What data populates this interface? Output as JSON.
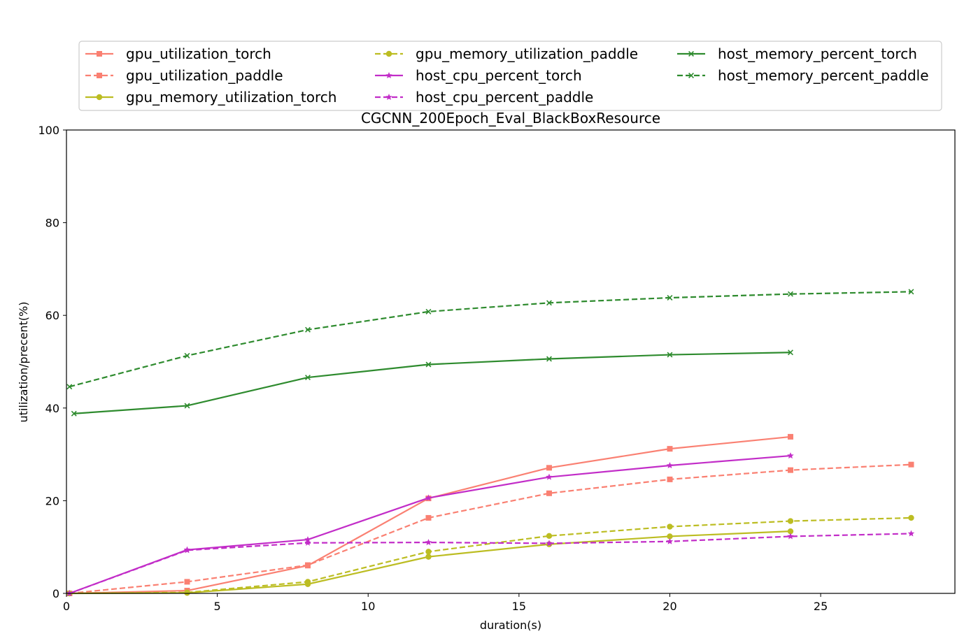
{
  "chart_data": {
    "type": "line",
    "title": "CGCNN_200Epoch_Eval_BlackBoxResource",
    "xlabel": "duration(s)",
    "ylabel": "utilization/precent(%)",
    "xlim": [
      0,
      29.45
    ],
    "ylim": [
      0,
      100
    ],
    "xticks": [
      "0",
      "5",
      "10",
      "15",
      "20",
      "25"
    ],
    "yticks": [
      "0",
      "20",
      "40",
      "60",
      "80",
      "100"
    ],
    "grid": false,
    "legend_position": "top",
    "series": [
      {
        "name": "gpu_utilization_torch",
        "color": "#fa8072",
        "dash": "solid",
        "marker": "square",
        "x": [
          0.1,
          4,
          8,
          12,
          16,
          20,
          24
        ],
        "y": [
          0,
          0.6,
          6.0,
          20.5,
          27.1,
          31.2,
          33.8
        ]
      },
      {
        "name": "gpu_utilization_paddle",
        "color": "#fa8072",
        "dash": "dashed",
        "marker": "square",
        "x": [
          0.1,
          4,
          8,
          12,
          16,
          20,
          24,
          28
        ],
        "y": [
          0,
          2.5,
          6.1,
          16.3,
          21.6,
          24.6,
          26.6,
          27.8
        ]
      },
      {
        "name": "gpu_memory_utilization_torch",
        "color": "#bcbd22",
        "dash": "solid",
        "marker": "circle",
        "x": [
          0.1,
          4,
          8,
          12,
          16,
          20,
          24
        ],
        "y": [
          0,
          0.1,
          2.0,
          7.9,
          10.6,
          12.3,
          13.4
        ]
      },
      {
        "name": "gpu_memory_utilization_paddle",
        "color": "#bcbd22",
        "dash": "dashed",
        "marker": "circle",
        "x": [
          0.1,
          4,
          8,
          12,
          16,
          20,
          24,
          28
        ],
        "y": [
          0,
          0.2,
          2.5,
          9.0,
          12.4,
          14.4,
          15.6,
          16.3
        ]
      },
      {
        "name": "host_cpu_percent_torch",
        "color": "#c22dc8",
        "dash": "solid",
        "marker": "star",
        "x": [
          0.1,
          4,
          8,
          12,
          16,
          20,
          24
        ],
        "y": [
          0,
          9.4,
          11.6,
          20.6,
          25.1,
          27.6,
          29.7
        ]
      },
      {
        "name": "host_cpu_percent_paddle",
        "color": "#c22dc8",
        "dash": "dashed",
        "marker": "star",
        "x": [
          0.1,
          4,
          8,
          12,
          16,
          20,
          24,
          28
        ],
        "y": [
          0,
          9.3,
          10.9,
          11.0,
          10.8,
          11.2,
          12.3,
          12.9
        ]
      },
      {
        "name": "host_memory_percent_torch",
        "color": "#2e8b2e",
        "dash": "solid",
        "marker": "x",
        "x": [
          0.25,
          4,
          8,
          12,
          16,
          20,
          24
        ],
        "y": [
          38.8,
          40.5,
          46.6,
          49.4,
          50.6,
          51.5,
          52.0
        ]
      },
      {
        "name": "host_memory_percent_paddle",
        "color": "#2e8b2e",
        "dash": "dashed",
        "marker": "x",
        "x": [
          0.1,
          4,
          8,
          12,
          16,
          20,
          24,
          28
        ],
        "y": [
          44.6,
          51.3,
          56.9,
          60.8,
          62.7,
          63.8,
          64.6,
          65.1
        ]
      }
    ]
  }
}
